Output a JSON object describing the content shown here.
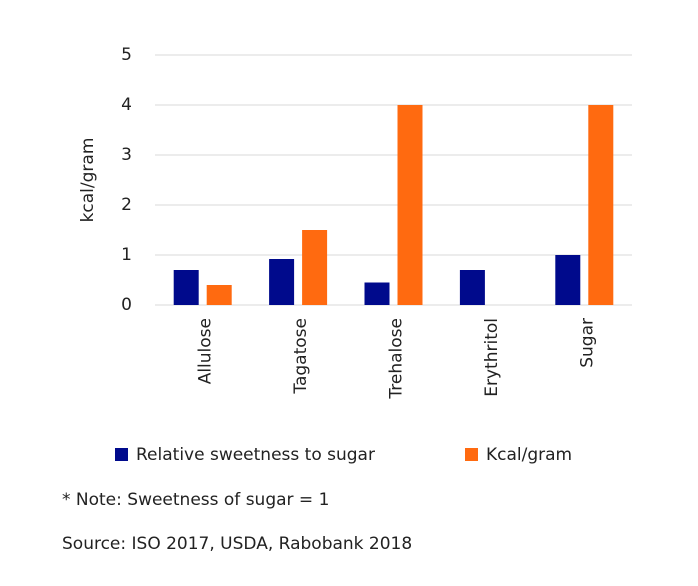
{
  "chart_data": {
    "type": "bar",
    "y_label": "kcal/gram",
    "categories": [
      "Allulose",
      "Tagatose",
      "Trehalose",
      "Erythritol",
      "Sugar"
    ],
    "series": [
      {
        "name": "Relative sweetness to sugar",
        "color": "#000a8c",
        "values": [
          0.7,
          0.92,
          0.45,
          0.7,
          1
        ]
      },
      {
        "name": "Kcal/gram",
        "color": "#ff6a10",
        "values": [
          0.4,
          1.5,
          4,
          0,
          4
        ]
      }
    ],
    "ylim": [
      0,
      5
    ],
    "yticks": [
      0,
      1,
      2,
      3,
      4,
      5
    ],
    "grid": true,
    "legend": "bottom",
    "annotations": [
      "* Note: Sweetness of sugar = 1",
      "Source: ISO 2017, USDA, Rabobank 2018"
    ]
  }
}
